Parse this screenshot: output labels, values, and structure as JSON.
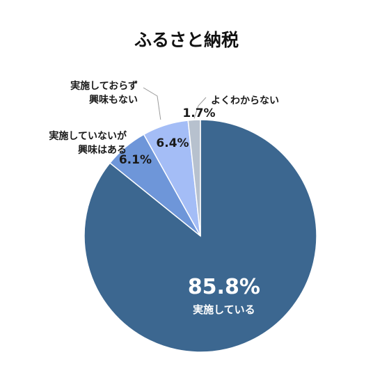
{
  "chart_data": {
    "type": "pie",
    "title": "ふるさと納税",
    "slices": [
      {
        "label_lines": [
          "実施している"
        ],
        "value": 85.8,
        "value_label": "85.8%",
        "color": "#3c6790"
      },
      {
        "label_lines": [
          "実施していないが",
          "興味はある"
        ],
        "value": 6.1,
        "value_label": "6.1%",
        "color": "#6e96d9"
      },
      {
        "label_lines": [
          "実施しておらず",
          "興味もない"
        ],
        "value": 6.4,
        "value_label": "6.4%",
        "color": "#a4bdf6"
      },
      {
        "label_lines": [
          "よくわからない"
        ],
        "value": 1.7,
        "value_label": "1.7%",
        "color": "#b7c1ce"
      }
    ]
  }
}
